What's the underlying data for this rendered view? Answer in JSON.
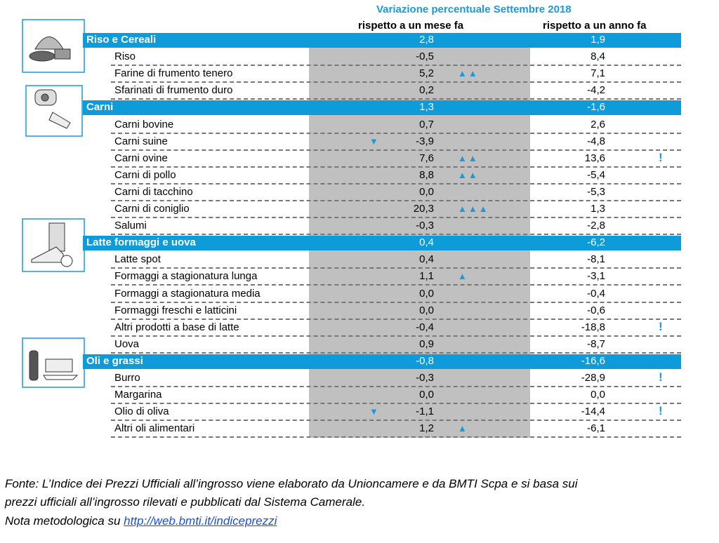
{
  "header": {
    "title": "Variazione percentuale Settembre 2018",
    "col_month": "rispetto a un mese fa",
    "col_year": "rispetto a un anno fa"
  },
  "groups": [
    {
      "name": "Riso e Cereali",
      "month": "2,8",
      "year": "1,9",
      "items": [
        {
          "name": "Riso",
          "month": "-0,5",
          "year": "8,4"
        },
        {
          "name": "Farine di frumento tenero",
          "month": "5,2",
          "year": "7,1",
          "trend": "▲▲"
        },
        {
          "name": "Sfarinati di frumento duro",
          "month": "0,2",
          "year": "-4,2"
        }
      ]
    },
    {
      "name": "Carni",
      "month": "1,3",
      "year": "-1,6",
      "items": [
        {
          "name": "Carni bovine",
          "month": "0,7",
          "year": "2,6"
        },
        {
          "name": "Carni suine",
          "month": "-3,9",
          "year": "-4,8",
          "trend": "▼"
        },
        {
          "name": "Carni ovine",
          "month": "7,6",
          "year": "13,6",
          "trend": "▲▲",
          "alert": "!"
        },
        {
          "name": "Carni di pollo",
          "month": "8,8",
          "year": "-5,4",
          "trend": "▲▲"
        },
        {
          "name": "Carni di tacchino",
          "month": "0,0",
          "year": "-5,3"
        },
        {
          "name": "Carni di coniglio",
          "month": "20,3",
          "year": "1,3",
          "trend": "▲▲▲"
        },
        {
          "name": "Salumi",
          "month": "-0,3",
          "year": "-2,8"
        }
      ]
    },
    {
      "name": "Latte formaggi e uova",
      "month": "0,4",
      "year": "-6,2",
      "items": [
        {
          "name": "Latte spot",
          "month": "0,4",
          "year": "-8,1"
        },
        {
          "name": "Formaggi a stagionatura lunga",
          "month": "1,1",
          "year": "-3,1",
          "trend": "▲"
        },
        {
          "name": "Formaggi a stagionatura media",
          "month": "0,0",
          "year": "-0,4"
        },
        {
          "name": "Formaggi freschi e latticini",
          "month": "0,0",
          "year": "-0,6"
        },
        {
          "name": "Altri prodotti a base di latte",
          "month": "-0,4",
          "year": "-18,8",
          "alert": "!"
        },
        {
          "name": "Uova",
          "month": "0,9",
          "year": "-8,7"
        }
      ]
    },
    {
      "name": "Oli e grassi",
      "month": "-0,8",
      "year": "-16,6",
      "items": [
        {
          "name": "Burro",
          "month": "-0,3",
          "year": "-28,9",
          "alert": "!"
        },
        {
          "name": "Margarina",
          "month": "0,0",
          "year": "0,0"
        },
        {
          "name": "Olio di oliva",
          "month": "-1,1",
          "year": "-14,4",
          "trend": "▼",
          "alert": "!"
        },
        {
          "name": "Altri oli alimentari",
          "month": "1,2",
          "year": "-6,1",
          "trend": "▲"
        }
      ]
    }
  ],
  "footer": {
    "lines": [
      "Fonte: L’Indice dei Prezzi Ufficiali all’ingrosso viene elaborato da Unioncamere e da BMTI Scpa e si basa sui",
      "prezzi ufficiali all’ingrosso rilevati e pubblicati dal Sistema Camerale."
    ],
    "note_prefix": "Nota metodologica su ",
    "link": "http://web.bmti.it/indiceprezzi"
  }
}
